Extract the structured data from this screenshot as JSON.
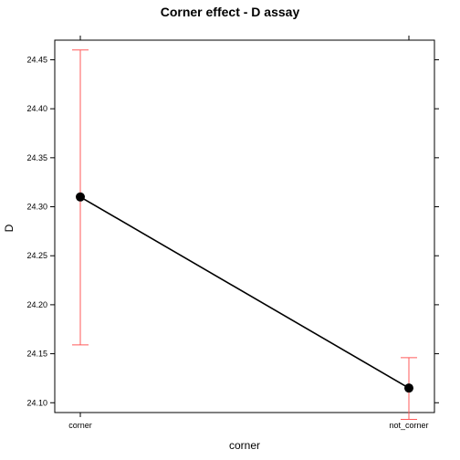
{
  "chart_data": {
    "type": "line",
    "title": "Corner effect - D assay",
    "xlabel": "corner",
    "ylabel": "D",
    "categories": [
      "corner",
      "not_corner"
    ],
    "series": [
      {
        "values": [
          24.31,
          24.115
        ],
        "error_lower": [
          24.159,
          24.083
        ],
        "error_upper": [
          24.46,
          24.146
        ]
      }
    ],
    "ylim": [
      24.09,
      24.47
    ],
    "yticks": [
      "24.10",
      "24.15",
      "24.20",
      "24.25",
      "24.30",
      "24.35",
      "24.40",
      "24.45"
    ],
    "grid": false,
    "colors": {
      "line": "#000000",
      "point": "#000000",
      "error_bar": "#ff5a5a"
    }
  }
}
